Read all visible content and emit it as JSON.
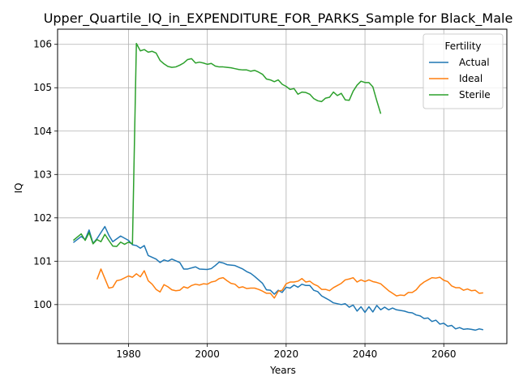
{
  "chart_data": {
    "type": "line",
    "title": "Upper_Quartile_IQ_in_EXPENDITURE_FOR_PARKS_Sample for Black_Male",
    "xlabel": "Years",
    "ylabel": "IQ",
    "xlim": [
      1962,
      2076
    ],
    "ylim": [
      99.1,
      106.35
    ],
    "x_ticks": [
      1980,
      2000,
      2020,
      2040,
      2060
    ],
    "y_ticks": [
      100,
      101,
      102,
      103,
      104,
      105,
      106
    ],
    "grid": true,
    "legend": {
      "title": "Fertility",
      "placement": "top-right"
    },
    "series": [
      {
        "name": "Actual",
        "color": "#1f77b4",
        "points": [
          [
            1966,
            101.43
          ],
          [
            1968,
            101.57
          ],
          [
            1969,
            101.5
          ],
          [
            1970,
            101.72
          ],
          [
            1971,
            101.41
          ],
          [
            1972,
            101.52
          ],
          [
            1974,
            101.8
          ],
          [
            1975,
            101.6
          ],
          [
            1976,
            101.45
          ],
          [
            1978,
            101.58
          ],
          [
            1980,
            101.48
          ],
          [
            1981,
            101.38
          ],
          [
            1982,
            101.36
          ],
          [
            1983,
            101.3
          ],
          [
            1984,
            101.36
          ],
          [
            1985,
            101.13
          ],
          [
            1987,
            101.05
          ],
          [
            1988,
            100.97
          ],
          [
            1989,
            101.03
          ],
          [
            1990,
            101.0
          ],
          [
            1991,
            101.05
          ],
          [
            1993,
            100.97
          ],
          [
            1994,
            100.82
          ],
          [
            1995,
            100.82
          ],
          [
            1997,
            100.87
          ],
          [
            1998,
            100.82
          ],
          [
            2000,
            100.81
          ],
          [
            2001,
            100.83
          ],
          [
            2002,
            100.9
          ],
          [
            2003,
            100.98
          ],
          [
            2004,
            100.96
          ],
          [
            2005,
            100.92
          ],
          [
            2007,
            100.9
          ],
          [
            2008,
            100.86
          ],
          [
            2009,
            100.82
          ],
          [
            2010,
            100.76
          ],
          [
            2011,
            100.72
          ],
          [
            2012,
            100.65
          ],
          [
            2014,
            100.49
          ],
          [
            2015,
            100.34
          ],
          [
            2016,
            100.33
          ],
          [
            2017,
            100.24
          ],
          [
            2018,
            100.33
          ],
          [
            2019,
            100.28
          ],
          [
            2020,
            100.4
          ],
          [
            2021,
            100.38
          ],
          [
            2022,
            100.45
          ],
          [
            2023,
            100.4
          ],
          [
            2024,
            100.47
          ],
          [
            2025,
            100.44
          ],
          [
            2026,
            100.44
          ],
          [
            2027,
            100.33
          ],
          [
            2028,
            100.3
          ],
          [
            2029,
            100.2
          ],
          [
            2030,
            100.15
          ],
          [
            2031,
            100.1
          ],
          [
            2032,
            100.04
          ],
          [
            2034,
            100.0
          ],
          [
            2035,
            100.02
          ],
          [
            2036,
            99.94
          ],
          [
            2037,
            99.99
          ],
          [
            2038,
            99.85
          ],
          [
            2039,
            99.95
          ],
          [
            2040,
            99.82
          ],
          [
            2041,
            99.95
          ],
          [
            2042,
            99.83
          ],
          [
            2043,
            99.98
          ],
          [
            2044,
            99.88
          ],
          [
            2045,
            99.94
          ],
          [
            2046,
            99.88
          ],
          [
            2047,
            99.92
          ],
          [
            2048,
            99.88
          ],
          [
            2050,
            99.85
          ],
          [
            2051,
            99.82
          ],
          [
            2052,
            99.81
          ],
          [
            2053,
            99.76
          ],
          [
            2054,
            99.74
          ],
          [
            2055,
            99.68
          ],
          [
            2056,
            99.69
          ],
          [
            2057,
            99.61
          ],
          [
            2058,
            99.64
          ],
          [
            2059,
            99.55
          ],
          [
            2060,
            99.57
          ],
          [
            2061,
            99.5
          ],
          [
            2062,
            99.52
          ],
          [
            2063,
            99.44
          ],
          [
            2064,
            99.47
          ],
          [
            2065,
            99.43
          ],
          [
            2066,
            99.44
          ],
          [
            2067,
            99.43
          ],
          [
            2068,
            99.41
          ],
          [
            2069,
            99.44
          ],
          [
            2070,
            99.42
          ]
        ]
      },
      {
        "name": "Ideal",
        "color": "#ff7f0e",
        "points": [
          [
            1972,
            100.58
          ],
          [
            1973,
            100.82
          ],
          [
            1974,
            100.6
          ],
          [
            1975,
            100.38
          ],
          [
            1976,
            100.4
          ],
          [
            1977,
            100.55
          ],
          [
            1978,
            100.57
          ],
          [
            1980,
            100.66
          ],
          [
            1981,
            100.63
          ],
          [
            1982,
            100.71
          ],
          [
            1983,
            100.64
          ],
          [
            1984,
            100.78
          ],
          [
            1985,
            100.55
          ],
          [
            1986,
            100.47
          ],
          [
            1987,
            100.35
          ],
          [
            1988,
            100.29
          ],
          [
            1989,
            100.46
          ],
          [
            1990,
            100.41
          ],
          [
            1991,
            100.34
          ],
          [
            1992,
            100.32
          ],
          [
            1993,
            100.33
          ],
          [
            1994,
            100.41
          ],
          [
            1995,
            100.38
          ],
          [
            1996,
            100.44
          ],
          [
            1997,
            100.47
          ],
          [
            1998,
            100.45
          ],
          [
            1999,
            100.48
          ],
          [
            2000,
            100.47
          ],
          [
            2001,
            100.52
          ],
          [
            2002,
            100.54
          ],
          [
            2003,
            100.6
          ],
          [
            2004,
            100.62
          ],
          [
            2005,
            100.55
          ],
          [
            2006,
            100.49
          ],
          [
            2007,
            100.47
          ],
          [
            2008,
            100.39
          ],
          [
            2009,
            100.41
          ],
          [
            2010,
            100.37
          ],
          [
            2011,
            100.38
          ],
          [
            2012,
            100.38
          ],
          [
            2013,
            100.35
          ],
          [
            2014,
            100.31
          ],
          [
            2015,
            100.26
          ],
          [
            2016,
            100.26
          ],
          [
            2017,
            100.15
          ],
          [
            2018,
            100.31
          ],
          [
            2019,
            100.33
          ],
          [
            2020,
            100.48
          ],
          [
            2021,
            100.52
          ],
          [
            2022,
            100.52
          ],
          [
            2023,
            100.54
          ],
          [
            2024,
            100.6
          ],
          [
            2025,
            100.52
          ],
          [
            2026,
            100.54
          ],
          [
            2027,
            100.47
          ],
          [
            2028,
            100.43
          ],
          [
            2029,
            100.35
          ],
          [
            2030,
            100.35
          ],
          [
            2031,
            100.32
          ],
          [
            2032,
            100.39
          ],
          [
            2033,
            100.44
          ],
          [
            2034,
            100.49
          ],
          [
            2035,
            100.57
          ],
          [
            2036,
            100.59
          ],
          [
            2037,
            100.62
          ],
          [
            2038,
            100.52
          ],
          [
            2039,
            100.57
          ],
          [
            2040,
            100.53
          ],
          [
            2041,
            100.57
          ],
          [
            2042,
            100.53
          ],
          [
            2043,
            100.51
          ],
          [
            2044,
            100.48
          ],
          [
            2045,
            100.4
          ],
          [
            2046,
            100.32
          ],
          [
            2047,
            100.26
          ],
          [
            2048,
            100.2
          ],
          [
            2049,
            100.22
          ],
          [
            2050,
            100.21
          ],
          [
            2051,
            100.28
          ],
          [
            2052,
            100.28
          ],
          [
            2053,
            100.34
          ],
          [
            2054,
            100.45
          ],
          [
            2055,
            100.52
          ],
          [
            2056,
            100.57
          ],
          [
            2057,
            100.62
          ],
          [
            2058,
            100.61
          ],
          [
            2059,
            100.63
          ],
          [
            2060,
            100.56
          ],
          [
            2061,
            100.53
          ],
          [
            2062,
            100.43
          ],
          [
            2063,
            100.39
          ],
          [
            2064,
            100.39
          ],
          [
            2065,
            100.33
          ],
          [
            2066,
            100.36
          ],
          [
            2067,
            100.32
          ],
          [
            2068,
            100.33
          ],
          [
            2069,
            100.26
          ],
          [
            2070,
            100.27
          ]
        ]
      },
      {
        "name": "Sterile",
        "color": "#2ca02c",
        "points": [
          [
            1966,
            101.48
          ],
          [
            1968,
            101.63
          ],
          [
            1969,
            101.48
          ],
          [
            1970,
            101.66
          ],
          [
            1971,
            101.4
          ],
          [
            1972,
            101.5
          ],
          [
            1973,
            101.45
          ],
          [
            1974,
            101.62
          ],
          [
            1975,
            101.48
          ],
          [
            1976,
            101.35
          ],
          [
            1977,
            101.34
          ],
          [
            1978,
            101.44
          ],
          [
            1979,
            101.39
          ],
          [
            1980,
            101.44
          ],
          [
            1981,
            101.4
          ],
          [
            1982,
            106.02
          ],
          [
            1983,
            105.85
          ],
          [
            1984,
            105.88
          ],
          [
            1985,
            105.82
          ],
          [
            1986,
            105.84
          ],
          [
            1987,
            105.8
          ],
          [
            1988,
            105.63
          ],
          [
            1989,
            105.55
          ],
          [
            1990,
            105.49
          ],
          [
            1991,
            105.47
          ],
          [
            1992,
            105.48
          ],
          [
            1993,
            105.52
          ],
          [
            1994,
            105.57
          ],
          [
            1995,
            105.65
          ],
          [
            1996,
            105.67
          ],
          [
            1997,
            105.57
          ],
          [
            1998,
            105.59
          ],
          [
            1999,
            105.57
          ],
          [
            2000,
            105.54
          ],
          [
            2001,
            105.56
          ],
          [
            2002,
            105.5
          ],
          [
            2003,
            105.48
          ],
          [
            2004,
            105.48
          ],
          [
            2005,
            105.47
          ],
          [
            2006,
            105.46
          ],
          [
            2007,
            105.44
          ],
          [
            2008,
            105.42
          ],
          [
            2009,
            105.41
          ],
          [
            2010,
            105.41
          ],
          [
            2011,
            105.38
          ],
          [
            2012,
            105.4
          ],
          [
            2013,
            105.36
          ],
          [
            2014,
            105.31
          ],
          [
            2015,
            105.2
          ],
          [
            2016,
            105.18
          ],
          [
            2017,
            105.14
          ],
          [
            2018,
            105.18
          ],
          [
            2019,
            105.08
          ],
          [
            2020,
            105.03
          ],
          [
            2021,
            104.96
          ],
          [
            2022,
            104.98
          ],
          [
            2023,
            104.85
          ],
          [
            2024,
            104.9
          ],
          [
            2025,
            104.89
          ],
          [
            2026,
            104.85
          ],
          [
            2027,
            104.75
          ],
          [
            2028,
            104.7
          ],
          [
            2029,
            104.68
          ],
          [
            2030,
            104.76
          ],
          [
            2031,
            104.78
          ],
          [
            2032,
            104.9
          ],
          [
            2033,
            104.82
          ],
          [
            2034,
            104.87
          ],
          [
            2035,
            104.72
          ],
          [
            2036,
            104.71
          ],
          [
            2037,
            104.92
          ],
          [
            2038,
            105.06
          ],
          [
            2039,
            105.15
          ],
          [
            2040,
            105.12
          ],
          [
            2041,
            105.12
          ],
          [
            2042,
            105.02
          ],
          [
            2043,
            104.7
          ],
          [
            2044,
            104.4
          ]
        ]
      }
    ]
  }
}
